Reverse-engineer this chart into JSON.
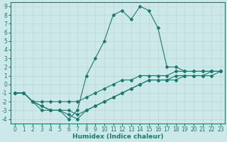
{
  "xlabel": "Humidex (Indice chaleur)",
  "xlim": [
    -0.5,
    23.5
  ],
  "ylim": [
    -4.5,
    9.5
  ],
  "xticks": [
    0,
    1,
    2,
    3,
    4,
    5,
    6,
    7,
    8,
    9,
    10,
    11,
    12,
    13,
    14,
    15,
    16,
    17,
    18,
    19,
    20,
    21,
    22,
    23
  ],
  "yticks": [
    -4,
    -3,
    -2,
    -1,
    0,
    1,
    2,
    3,
    4,
    5,
    6,
    7,
    8,
    9
  ],
  "bg_color": "#cce8e8",
  "line_color": "#1a7a6e",
  "grid_color": "#b8d8d8",
  "lines": [
    {
      "x": [
        0,
        1,
        2,
        3,
        4,
        5,
        6,
        7,
        8,
        9,
        10,
        11,
        12,
        13,
        14,
        15,
        16,
        17,
        18,
        19,
        20,
        21,
        22,
        23
      ],
      "y": [
        -1,
        -1,
        -2,
        -3,
        -3,
        -3,
        -4,
        -3,
        1,
        3,
        5,
        8,
        8.5,
        7.5,
        9,
        8.5,
        6.5,
        2,
        2,
        1.5,
        1.5,
        1.5,
        1.5,
        1.5
      ]
    },
    {
      "x": [
        0,
        1,
        2,
        3,
        4,
        5,
        6,
        7,
        8,
        9,
        10,
        11,
        12,
        13,
        14,
        15,
        16,
        17,
        18,
        19,
        20,
        21,
        22,
        23
      ],
      "y": [
        -1,
        -1,
        -2,
        -2,
        -2,
        -2,
        -2,
        -2,
        -1.5,
        -1,
        -0.5,
        0,
        0.5,
        0.5,
        1,
        1,
        1,
        1,
        1.5,
        1.5,
        1.5,
        1.5,
        1.5,
        1.5
      ]
    },
    {
      "x": [
        0,
        1,
        2,
        3,
        4,
        5,
        6,
        7,
        8,
        9,
        10,
        11,
        12,
        13,
        14,
        15,
        16,
        17,
        18,
        19,
        20,
        21,
        22,
        23
      ],
      "y": [
        -1,
        -1,
        -2,
        -2.5,
        -3,
        -3,
        -3,
        -3.5,
        -3,
        -2.5,
        -2,
        -1.5,
        -1,
        -0.5,
        0,
        0.5,
        0.5,
        0.5,
        1,
        1,
        1,
        1,
        1.5,
        1.5
      ]
    },
    {
      "x": [
        0,
        1,
        2,
        3,
        4,
        5,
        6,
        7,
        8,
        9,
        10,
        11,
        12,
        13,
        14,
        15,
        16,
        17,
        18,
        19,
        20,
        21,
        22,
        23
      ],
      "y": [
        -1,
        -1,
        -2,
        -2.5,
        -3,
        -3,
        -3.5,
        -4,
        -3,
        -2.5,
        -2,
        -1.5,
        -1,
        -0.5,
        0,
        0.5,
        0.5,
        0.5,
        0.5,
        1,
        1,
        1,
        1,
        1.5
      ]
    }
  ]
}
